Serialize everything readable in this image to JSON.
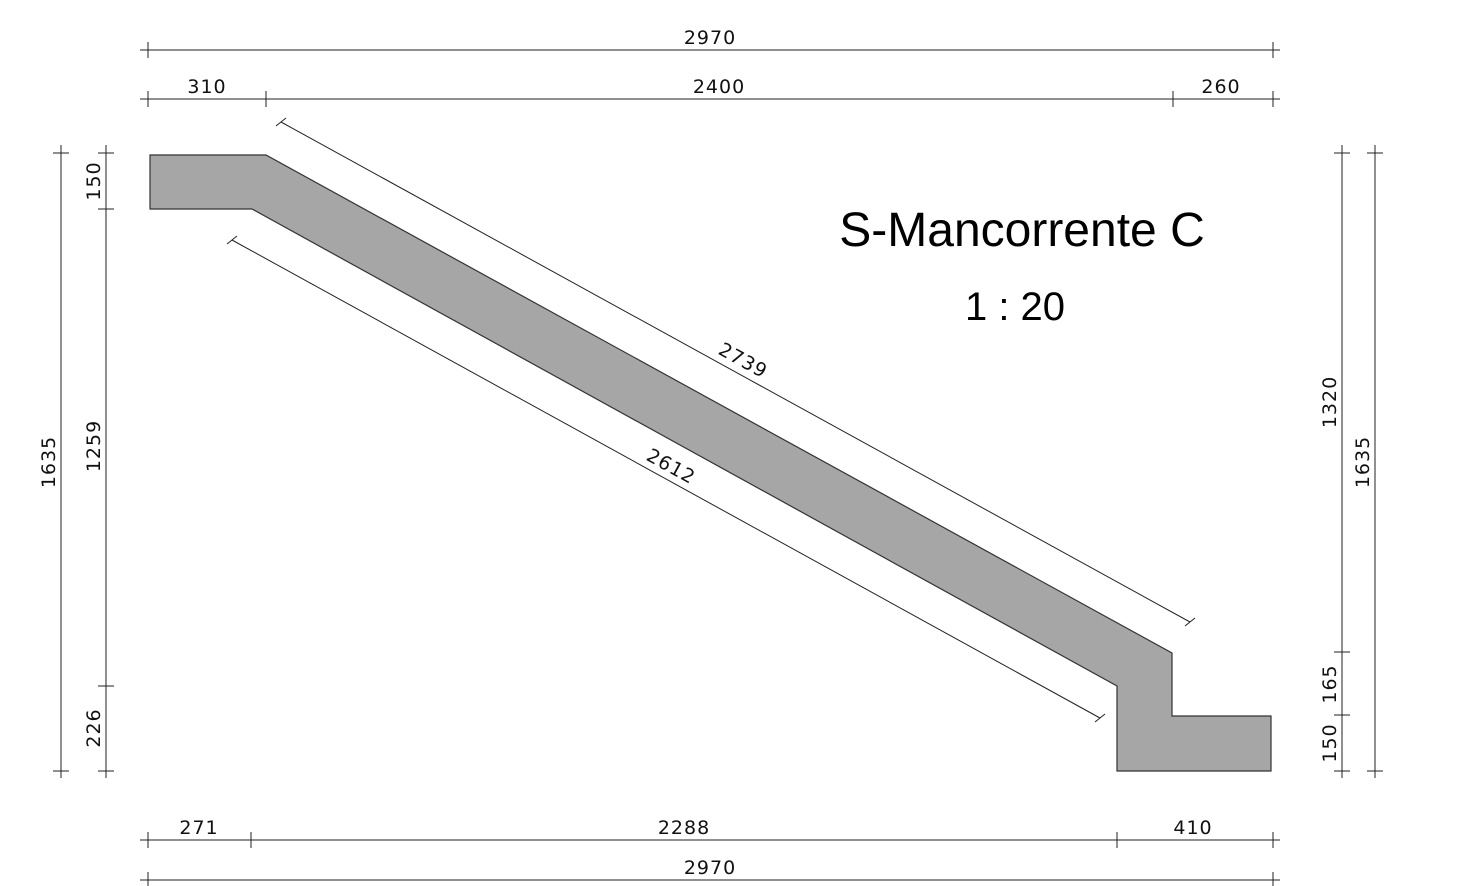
{
  "title": "S-Mancorrente C",
  "scale": "1 : 20",
  "colors": {
    "section_fill": "#a6a6a6",
    "line": "#222222"
  },
  "dimensions": {
    "top_total": "2970",
    "top_left": "310",
    "top_middle": "2400",
    "top_right": "260",
    "bottom_left": "271",
    "bottom_middle": "2288",
    "bottom_right": "410",
    "bottom_total": "2970",
    "left_total": "1635",
    "left_top": "150",
    "left_middle": "1259",
    "left_bottom": "226",
    "right_upper": "1320",
    "right_mid": "165",
    "right_lower": "150",
    "right_total": "1635",
    "diagonal_upper": "2739",
    "diagonal_lower": "2612"
  }
}
